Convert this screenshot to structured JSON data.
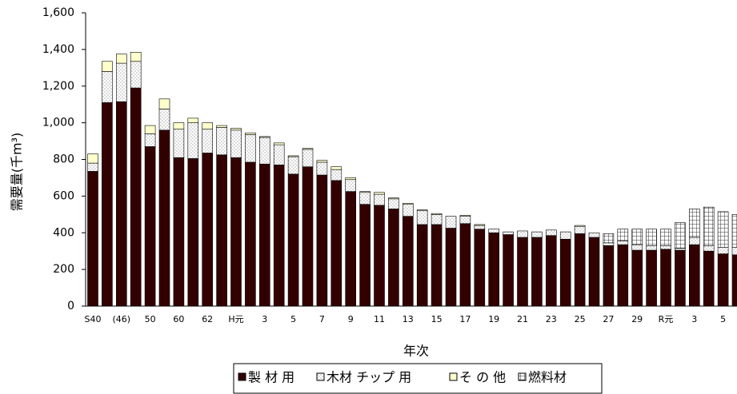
{
  "chart_data": {
    "type": "stacked-bar",
    "y_label": "需要量(千m³)",
    "x_label": "年次",
    "categories": [
      "S40",
      null,
      "(46)",
      null,
      "50",
      null,
      "60",
      null,
      "62",
      null,
      "H元",
      null,
      "3",
      null,
      "5",
      null,
      "7",
      null,
      "9",
      null,
      "11",
      null,
      "13",
      null,
      "15",
      null,
      "17",
      null,
      "19",
      null,
      "21",
      null,
      "23",
      null,
      "25",
      null,
      "27",
      null,
      "29",
      null,
      "R元",
      null,
      "3",
      null,
      "5",
      null
    ],
    "series": [
      {
        "name": "製 材 用",
        "color": "#330000",
        "pattern": "solid",
        "values": [
          735,
          1110,
          1115,
          1190,
          870,
          960,
          810,
          805,
          835,
          825,
          810,
          785,
          775,
          770,
          720,
          760,
          715,
          685,
          625,
          555,
          550,
          530,
          490,
          445,
          445,
          425,
          450,
          420,
          400,
          390,
          375,
          375,
          385,
          365,
          395,
          375,
          330,
          335,
          305,
          305,
          310,
          305,
          335,
          300,
          285,
          280
        ]
      },
      {
        "name": "木材 チップ 用",
        "color": "#ffffff",
        "pattern": "dots",
        "values": [
          45,
          170,
          210,
          145,
          70,
          115,
          155,
          195,
          130,
          150,
          150,
          150,
          145,
          110,
          95,
          95,
          70,
          60,
          65,
          65,
          60,
          55,
          65,
          75,
          55,
          65,
          40,
          20,
          20,
          15,
          35,
          30,
          30,
          40,
          40,
          25,
          15,
          20,
          30,
          25,
          20,
          10,
          40,
          30,
          35,
          40
        ]
      },
      {
        "name": "そ の 他",
        "color": "#ffffcc",
        "pattern": "solid",
        "values": [
          50,
          55,
          50,
          50,
          45,
          55,
          35,
          25,
          35,
          10,
          10,
          10,
          5,
          10,
          5,
          5,
          10,
          15,
          10,
          5,
          10,
          5,
          5,
          5,
          5,
          0,
          5,
          5,
          0,
          0,
          0,
          0,
          0,
          0,
          5,
          0,
          0,
          0,
          0,
          0,
          0,
          0,
          0,
          0,
          0,
          0
        ]
      },
      {
        "name": "燃料材",
        "color": "#ffffff",
        "pattern": "grid",
        "values": [
          0,
          0,
          0,
          0,
          0,
          0,
          0,
          0,
          0,
          0,
          0,
          0,
          0,
          0,
          0,
          0,
          0,
          0,
          0,
          0,
          0,
          0,
          0,
          0,
          0,
          0,
          0,
          0,
          0,
          0,
          0,
          0,
          0,
          0,
          0,
          0,
          50,
          65,
          85,
          90,
          90,
          140,
          155,
          210,
          195,
          180
        ]
      }
    ],
    "ylim": [
      0,
      1600
    ],
    "yticks": [
      0,
      200,
      400,
      600,
      800,
      {
        "value": 1000,
        "label": "1,000"
      },
      {
        "value": 1200,
        "label": "1,200"
      },
      {
        "value": 1400,
        "label": "1,400"
      },
      {
        "value": 1600,
        "label": "1,600"
      }
    ],
    "grid": false
  }
}
